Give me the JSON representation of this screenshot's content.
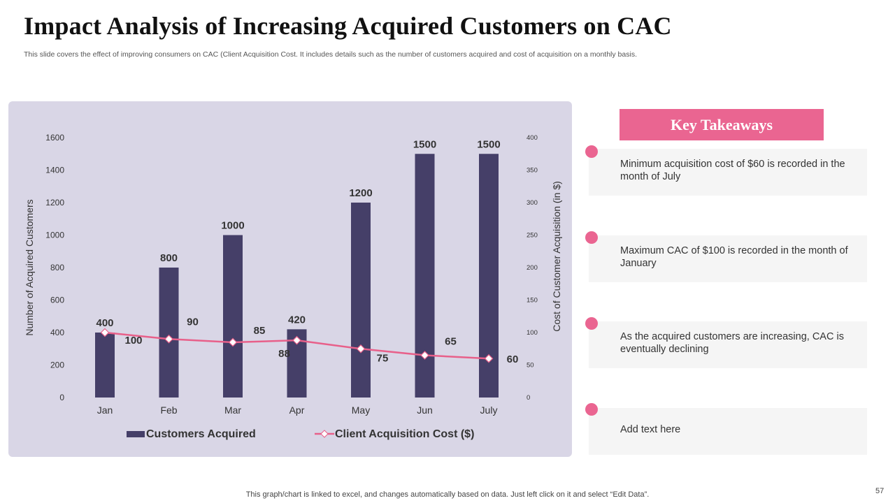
{
  "slide": {
    "title": "Impact Analysis of Increasing Acquired Customers on CAC",
    "subtitle": "This slide covers the effect of improving consumers on CAC (Client Acquisition Cost. It includes details such as the number of customers acquired and cost of acquisition on a monthly basis.",
    "footer": "This graph/chart is linked to excel,  and changes automatically based on data. Just left click on it and select “Edit Data”.",
    "page_number": "57"
  },
  "key_takeaways": {
    "header": "Key Takeaways",
    "items": [
      "Minimum acquisition cost of $60 is recorded in the month of July",
      "Maximum CAC of $100 is recorded in the month of January",
      "As the acquired customers are increasing, CAC is eventually declining",
      "Add text here"
    ]
  },
  "colors": {
    "bar": "#453f68",
    "line": "#e8608a",
    "accent": "#ea6591",
    "panel": "#d9d6e6"
  },
  "chart_data": {
    "type": "bar",
    "categories": [
      "Jan",
      "Feb",
      "Mar",
      "Apr",
      "May",
      "Jun",
      "July"
    ],
    "series": [
      {
        "name": "Customers Acquired",
        "type": "bar",
        "axis": "left",
        "values": [
          400,
          800,
          1000,
          420,
          1200,
          1500,
          1500
        ]
      },
      {
        "name": "Client Acquisition Cost ($)",
        "type": "line",
        "axis": "right",
        "values": [
          100,
          90,
          85,
          88,
          75,
          65,
          60
        ]
      }
    ],
    "ylabel": "Number of Acquired Customers",
    "y2label": "Cost of Customer Acquisition (in $)",
    "ylim": [
      0,
      1600
    ],
    "y2lim": [
      0,
      400
    ],
    "yticks": [
      0,
      200,
      400,
      600,
      800,
      1000,
      1200,
      1400,
      1600
    ],
    "y2ticks": [
      0,
      50,
      100,
      150,
      200,
      250,
      300,
      350,
      400
    ],
    "legend": "bottom"
  }
}
